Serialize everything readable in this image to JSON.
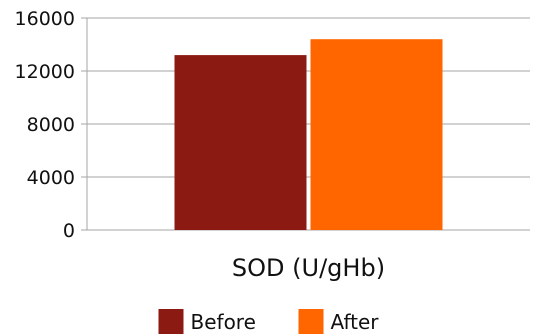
{
  "chart_data": {
    "type": "bar",
    "categories": [
      "SOD (U/gHb)"
    ],
    "series": [
      {
        "name": "Before",
        "values": [
          13200
        ],
        "color": "#8B1A12"
      },
      {
        "name": "After",
        "values": [
          14400
        ],
        "color": "#FF6600"
      }
    ],
    "ylim": [
      0,
      16000
    ],
    "yticks": [
      "0",
      "4000",
      "8000",
      "12000",
      "16000"
    ],
    "grid": true,
    "legend": "bottom",
    "xlabel": "",
    "ylabel": "",
    "title": ""
  }
}
